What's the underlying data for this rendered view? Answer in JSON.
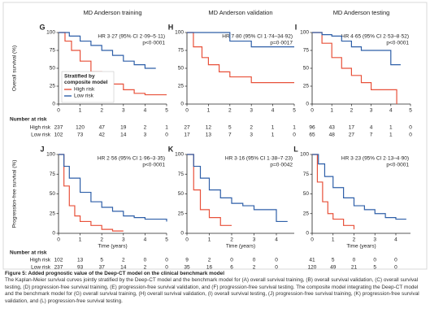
{
  "chart_data": [
    {
      "type": "line",
      "letter": "G",
      "title": "MD Anderson training",
      "ylabel": "Overall survival (%)",
      "annotation": "HR 3·27 (95% CI 2·09–5·11)",
      "pvalue": "p<0·0001",
      "xlim": [
        0,
        5
      ],
      "xticks": [
        0,
        1,
        2,
        3,
        4,
        5
      ],
      "ylim": [
        0,
        100
      ],
      "yticks": [
        0,
        25,
        50,
        75,
        100
      ],
      "legend": true,
      "legend_title": [
        "Stratified by",
        "composite model"
      ],
      "risk_label": "Number at risk",
      "series": [
        {
          "name": "High risk",
          "color": "#e8513a",
          "x": [
            0,
            0.3,
            0.6,
            1,
            1.5,
            2,
            2.5,
            3,
            3.5,
            4,
            5
          ],
          "values": [
            100,
            88,
            75,
            60,
            45,
            35,
            28,
            20,
            15,
            13,
            13
          ],
          "at_risk": [
            237,
            120,
            47,
            19,
            2,
            1
          ]
        },
        {
          "name": "Low risk",
          "color": "#2e5fa8",
          "x": [
            0,
            0.5,
            1,
            1.5,
            2,
            2.5,
            3,
            3.5,
            4,
            4.5
          ],
          "values": [
            100,
            95,
            88,
            82,
            75,
            68,
            60,
            55,
            50,
            50
          ],
          "at_risk": [
            102,
            73,
            42,
            14,
            3,
            0
          ]
        }
      ]
    },
    {
      "type": "line",
      "letter": "H",
      "title": "MD Anderson validation",
      "annotation": "HR 7·80 (95% CI 1·74–34·92)",
      "pvalue": "p=0·0017",
      "xlim": [
        0,
        5
      ],
      "xticks": [
        0,
        1,
        2,
        3,
        4,
        5
      ],
      "ylim": [
        0,
        100
      ],
      "yticks": [
        0,
        25,
        50,
        75,
        100
      ],
      "legend": false,
      "series": [
        {
          "name": "High risk",
          "color": "#e8513a",
          "x": [
            0,
            0.3,
            0.7,
            1,
            1.5,
            2,
            3,
            4,
            5
          ],
          "values": [
            100,
            80,
            65,
            55,
            45,
            38,
            30,
            30,
            30
          ],
          "at_risk": [
            27,
            12,
            5,
            2,
            1,
            1
          ]
        },
        {
          "name": "Low risk",
          "color": "#2e5fa8",
          "x": [
            0,
            1,
            2,
            2.5,
            3,
            5
          ],
          "values": [
            100,
            100,
            88,
            88,
            80,
            80
          ],
          "at_risk": [
            17,
            13,
            7,
            3,
            1,
            0
          ]
        }
      ]
    },
    {
      "type": "line",
      "letter": "I",
      "title": "MD Anderson testing",
      "annotation": "HR 4·65 (95% CI 2·53–8·52)",
      "pvalue": "p<0·0001",
      "xlim": [
        0,
        5
      ],
      "xticks": [
        0,
        1,
        2,
        3,
        4,
        5
      ],
      "ylim": [
        0,
        100
      ],
      "yticks": [
        0,
        25,
        50,
        75,
        100
      ],
      "legend": false,
      "series": [
        {
          "name": "High risk",
          "color": "#e8513a",
          "x": [
            0,
            0.5,
            1,
            1.5,
            2,
            2.5,
            3,
            3.5,
            4,
            4.3
          ],
          "values": [
            100,
            85,
            65,
            50,
            40,
            30,
            20,
            20,
            20,
            0
          ],
          "at_risk": [
            96,
            43,
            17,
            4,
            1,
            0
          ]
        },
        {
          "name": "Low risk",
          "color": "#2e5fa8",
          "x": [
            0,
            0.5,
            1,
            1.5,
            2,
            2.5,
            3,
            3.5,
            4,
            4.5
          ],
          "values": [
            100,
            97,
            95,
            88,
            80,
            75,
            75,
            75,
            55,
            55
          ],
          "at_risk": [
            65,
            48,
            27,
            7,
            1,
            0
          ]
        }
      ]
    },
    {
      "type": "line",
      "letter": "J",
      "ylabel": "Progression-free survival (%)",
      "xlabel": "Time (years)",
      "annotation": "HR 2·56 (95% CI 1·96–3·35)",
      "pvalue": "p<0·0001",
      "xlim": [
        0,
        5
      ],
      "xticks": [
        0,
        1,
        2,
        3,
        4,
        5
      ],
      "ylim": [
        0,
        100
      ],
      "yticks": [
        0,
        25,
        50,
        75,
        100
      ],
      "legend": false,
      "risk_label": "Number at risk",
      "series": [
        {
          "name": "High risk",
          "color": "#e8513a",
          "x": [
            0,
            0.25,
            0.5,
            0.75,
            1,
            1.5,
            2,
            2.5,
            3
          ],
          "values": [
            100,
            60,
            35,
            22,
            15,
            10,
            5,
            3,
            3
          ],
          "at_risk": [
            102,
            13,
            5,
            2,
            0,
            0
          ]
        },
        {
          "name": "Low risk",
          "color": "#2e5fa8",
          "x": [
            0,
            0.25,
            0.5,
            1,
            1.5,
            2,
            2.5,
            3,
            3.5,
            4,
            5
          ],
          "values": [
            100,
            85,
            70,
            52,
            40,
            33,
            28,
            22,
            20,
            18,
            15
          ],
          "at_risk": [
            237,
            93,
            37,
            14,
            2,
            0
          ]
        }
      ]
    },
    {
      "type": "line",
      "letter": "K",
      "xlabel": "Time (years)",
      "annotation": "HR 3·16 (95% CI 1·38–7·23)",
      "pvalue": "p=0·0042",
      "xlim": [
        0,
        4.8
      ],
      "xticks": [
        0,
        1,
        2,
        3,
        4
      ],
      "ylim": [
        0,
        100
      ],
      "yticks": [
        0,
        25,
        50,
        75,
        100
      ],
      "legend": false,
      "series": [
        {
          "name": "High risk",
          "color": "#e8513a",
          "x": [
            0,
            0.3,
            0.6,
            1,
            1.5,
            2
          ],
          "values": [
            100,
            55,
            30,
            20,
            10,
            10
          ],
          "at_risk": [
            9,
            2,
            0,
            0,
            0
          ]
        },
        {
          "name": "Low risk",
          "color": "#2e5fa8",
          "x": [
            0,
            0.3,
            0.6,
            1,
            1.5,
            2,
            2.5,
            3,
            3.5,
            4,
            4.5
          ],
          "values": [
            100,
            85,
            70,
            55,
            45,
            38,
            35,
            30,
            30,
            15,
            15
          ],
          "at_risk": [
            35,
            16,
            6,
            2,
            0
          ]
        }
      ]
    },
    {
      "type": "line",
      "letter": "L",
      "xlabel": "Time (years)",
      "annotation": "HR 3·23 (95% CI 2·13–4·90)",
      "pvalue": "p<0·0001",
      "xlim": [
        0,
        4.7
      ],
      "xticks": [
        0,
        1,
        2,
        3,
        4
      ],
      "ylim": [
        0,
        100
      ],
      "yticks": [
        0,
        25,
        50,
        75,
        100
      ],
      "legend": false,
      "series": [
        {
          "name": "High risk",
          "color": "#e8513a",
          "x": [
            0,
            0.25,
            0.5,
            0.75,
            1,
            1.5,
            2
          ],
          "values": [
            100,
            65,
            40,
            25,
            18,
            10,
            5
          ],
          "at_risk": [
            41,
            5,
            0,
            0,
            0
          ]
        },
        {
          "name": "Low risk",
          "color": "#2e5fa8",
          "x": [
            0,
            0.3,
            0.6,
            1,
            1.5,
            2,
            2.5,
            3,
            3.5,
            4,
            4.5
          ],
          "values": [
            100,
            88,
            72,
            58,
            45,
            35,
            30,
            25,
            20,
            18,
            18
          ],
          "at_risk": [
            120,
            49,
            21,
            5,
            0
          ]
        }
      ]
    }
  ],
  "caption": {
    "title": "Figure 5: Added prognostic value of the Deep-CT model on the clinical benchmark model",
    "text": "The Kaplan-Meier survival curves jointly stratified by the Deep-CT model and the benchmark model for (A) overall survival training, (B) overall survival validation, (C) overall survival testing, (D) progression-free survival training, (E) progression-free survival validation, and (F) progression-free survival testing. The composite model integrating the Deep-CT model and the benchmark model for (G) overall survival training, (H) overall survival validation, (I) overall survival testing, (J) progression-free survival training, (K) progression-free survival validation, and (L) progression-free survival testing."
  }
}
